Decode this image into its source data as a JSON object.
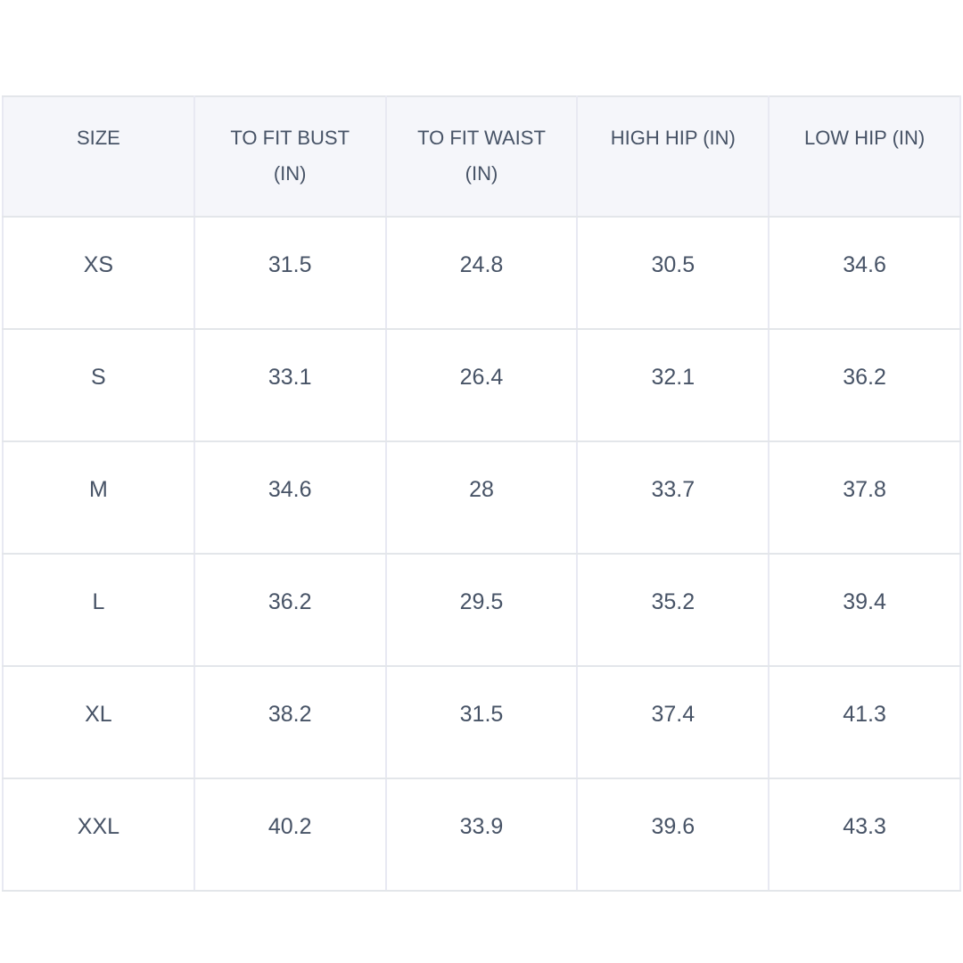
{
  "theme": {
    "page_bg": "#ffffff",
    "header_bg": "#f5f6fa",
    "cell_bg": "#ffffff",
    "border_vertical": "#e8e9f2",
    "border_horizontal": "#e3e6ea",
    "text": "#475366"
  },
  "size_chart": {
    "columns": [
      {
        "id": "size",
        "label": "SIZE",
        "lines": [
          "SIZE"
        ]
      },
      {
        "id": "bust",
        "label": "TO FIT BUST (IN)",
        "lines": [
          "TO FIT BUST",
          "(IN)"
        ]
      },
      {
        "id": "waist",
        "label": "TO FIT WAIST (IN)",
        "lines": [
          "TO FIT WAIST",
          "(IN)"
        ]
      },
      {
        "id": "high_hip",
        "label": "HIGH HIP (IN)",
        "lines": [
          "HIGH HIP (IN)"
        ]
      },
      {
        "id": "low_hip",
        "label": "LOW HIP (IN)",
        "lines": [
          "LOW HIP (IN)"
        ]
      }
    ],
    "rows": [
      {
        "size": "XS",
        "bust": "31.5",
        "waist": "24.8",
        "high_hip": "30.5",
        "low_hip": "34.6"
      },
      {
        "size": "S",
        "bust": "33.1",
        "waist": "26.4",
        "high_hip": "32.1",
        "low_hip": "36.2"
      },
      {
        "size": "M",
        "bust": "34.6",
        "waist": "28",
        "high_hip": "33.7",
        "low_hip": "37.8"
      },
      {
        "size": "L",
        "bust": "36.2",
        "waist": "29.5",
        "high_hip": "35.2",
        "low_hip": "39.4"
      },
      {
        "size": "XL",
        "bust": "38.2",
        "waist": "31.5",
        "high_hip": "37.4",
        "low_hip": "41.3"
      },
      {
        "size": "XXL",
        "bust": "40.2",
        "waist": "33.9",
        "high_hip": "39.6",
        "low_hip": "43.3"
      }
    ]
  },
  "chart_data": {
    "type": "table",
    "columns": [
      "SIZE",
      "TO FIT BUST (IN)",
      "TO FIT WAIST (IN)",
      "HIGH HIP (IN)",
      "LOW HIP (IN)"
    ],
    "rows": [
      [
        "XS",
        31.5,
        24.8,
        30.5,
        34.6
      ],
      [
        "S",
        33.1,
        26.4,
        32.1,
        36.2
      ],
      [
        "M",
        34.6,
        28,
        33.7,
        37.8
      ],
      [
        "L",
        36.2,
        29.5,
        35.2,
        39.4
      ],
      [
        "XL",
        38.2,
        31.5,
        37.4,
        41.3
      ],
      [
        "XXL",
        40.2,
        33.9,
        39.6,
        43.3
      ]
    ]
  }
}
